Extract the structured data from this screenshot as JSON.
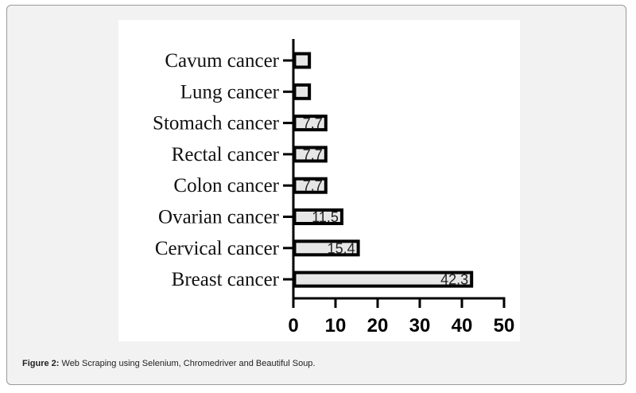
{
  "caption": {
    "lead": "Figure 2:",
    "text": " Web Scraping using Selenium, Chromedriver and  Beautiful Soup."
  },
  "chart_data": {
    "type": "bar",
    "orientation": "horizontal",
    "categories": [
      "Cavum cancer",
      "Lung cancer",
      "Stomach cancer",
      "Rectal cancer",
      "Colon cancer",
      "Ovarian cancer",
      "Cervical cancer",
      "Breast cancer"
    ],
    "values": [
      3.8,
      3.8,
      7.7,
      7.7,
      7.7,
      11.5,
      15.4,
      42.3
    ],
    "data_labels": [
      "",
      "",
      "7.7",
      "7.7",
      "7.7",
      "11.5",
      "15.4",
      "42.3"
    ],
    "xticks": [
      "0",
      "10",
      "20",
      "30",
      "40",
      "50"
    ],
    "xlim": [
      0,
      50
    ],
    "title": "",
    "xlabel": "",
    "ylabel": "",
    "grid": false,
    "bar_fill": "#e6e6e6",
    "bar_stroke": "#000000"
  }
}
